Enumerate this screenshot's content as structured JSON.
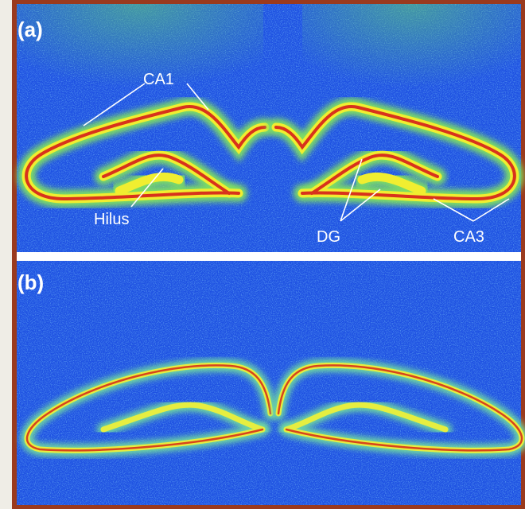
{
  "panels": [
    {
      "label": "(a)",
      "annotations": [
        "CA1",
        "Hilus",
        "DG",
        "CA3"
      ]
    },
    {
      "label": "(b)"
    }
  ]
}
